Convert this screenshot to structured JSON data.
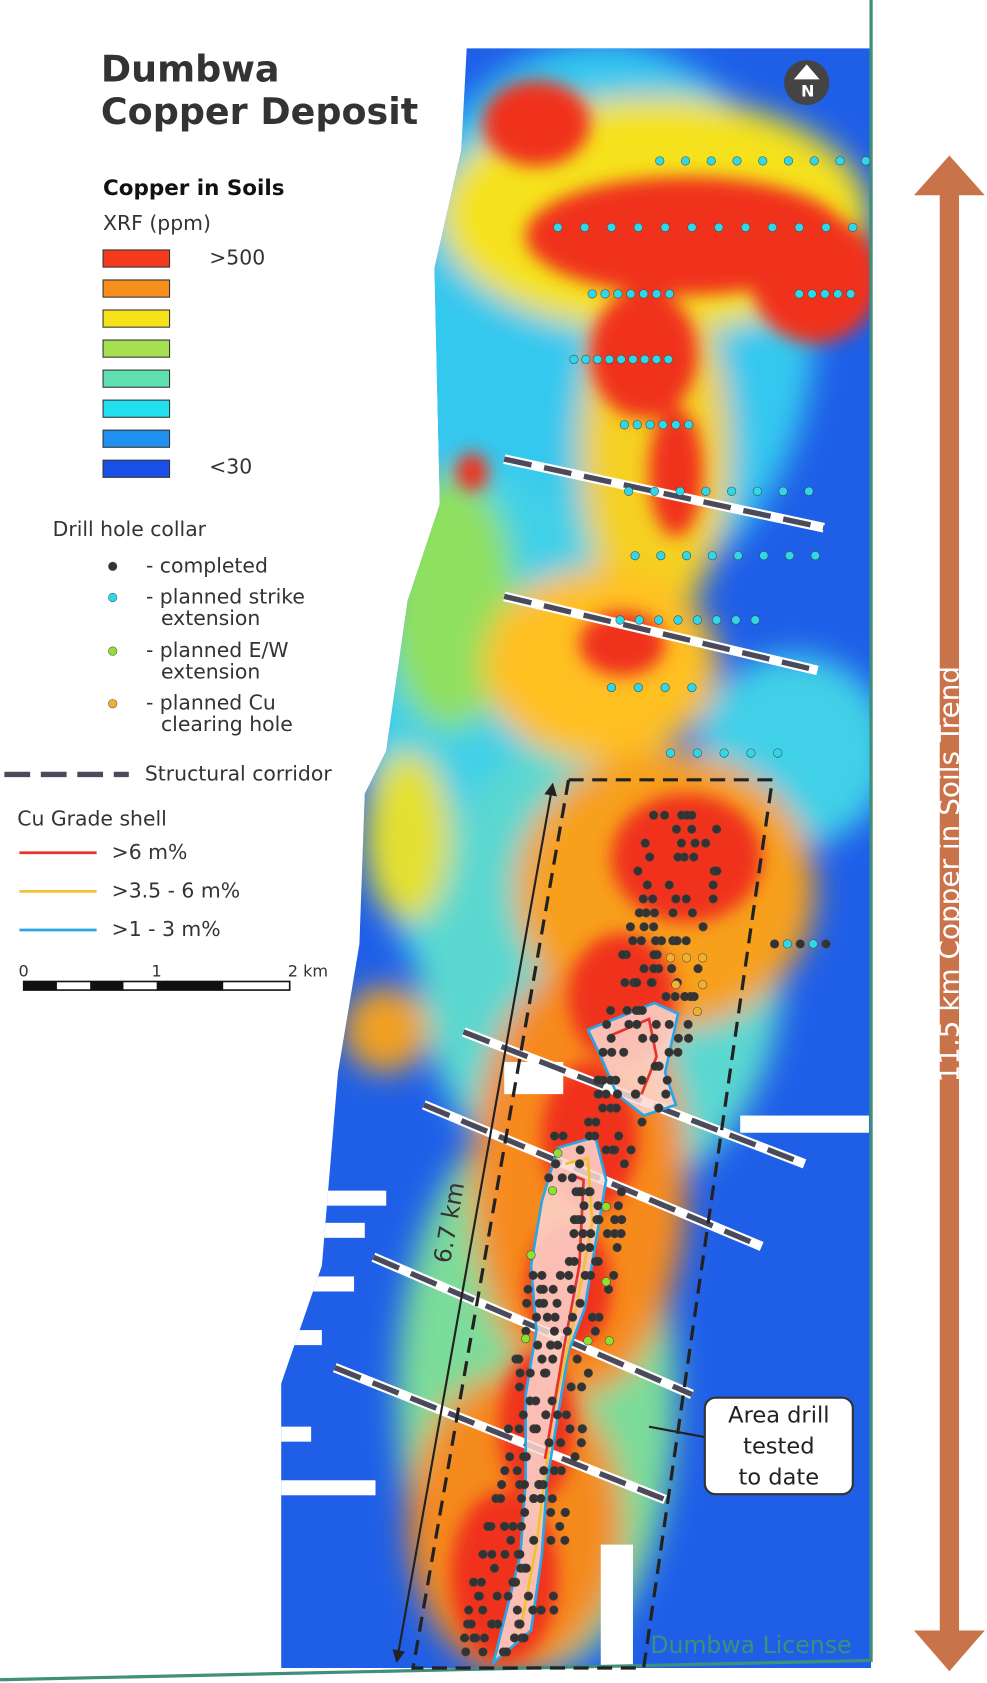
{
  "title": [
    "Dumbwa",
    "Copper Deposit"
  ],
  "legend": {
    "soil_title": "Copper in Soils",
    "soil_unit": "XRF (ppm)",
    "soil_high": ">500",
    "soil_low": "<30",
    "collar_title": "Drill hole collar",
    "collars": [
      [
        "- completed"
      ],
      [
        "- planned strike",
        "extension"
      ],
      [
        "- planned E/W",
        "extension"
      ],
      [
        "- planned Cu",
        "clearing hole"
      ]
    ],
    "structural": "Structural corridor",
    "shell_title": "Cu Grade shell",
    "shells": [
      ">6 m%",
      ">3.5 - 6 m%",
      ">1 - 3 m%"
    ],
    "scale": [
      "0",
      "1",
      "2 km"
    ]
  },
  "north": "N",
  "annotations": {
    "length": "6.7 km",
    "trend": "11.5 km Copper in Soils Trend",
    "area": [
      "Area drill",
      "tested",
      "to date"
    ],
    "license": "Dumbwa License"
  }
}
